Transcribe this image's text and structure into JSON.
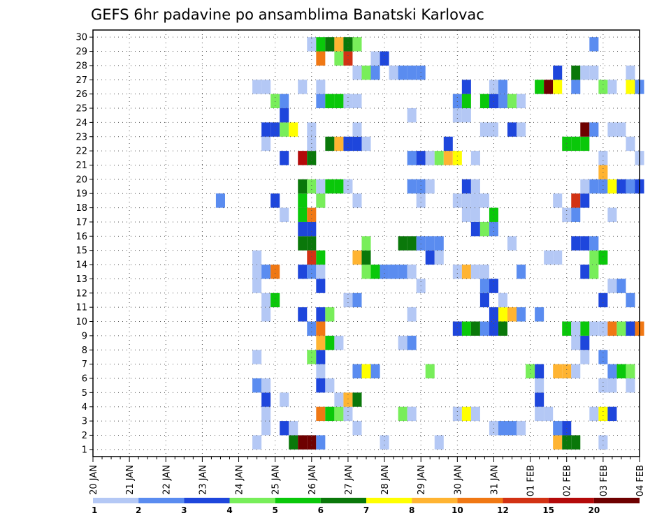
{
  "chart_data": {
    "type": "heatmap",
    "title": "GEFS 6hr padavine po ansamblima Banatski Karlovac",
    "xlabel": "",
    "ylabel": "",
    "x_ticks": [
      "20 JAN",
      "21 JAN",
      "22 JAN",
      "23 JAN",
      "24 JAN",
      "25 JAN",
      "26 JAN",
      "27 JAN",
      "28 JAN",
      "29 JAN",
      "30 JAN",
      "31 JAN",
      "01 FEB",
      "02 FEB",
      "03 FEB",
      "04 FEB"
    ],
    "y_ticks": [
      "1",
      "2",
      "3",
      "4",
      "5",
      "6",
      "7",
      "8",
      "9",
      "10",
      "11",
      "12",
      "13",
      "14",
      "15",
      "16",
      "17",
      "18",
      "19",
      "20",
      "21",
      "22",
      "23",
      "24",
      "25",
      "26",
      "27",
      "28",
      "29",
      "30"
    ],
    "xlim": [
      0,
      15
    ],
    "ylim": [
      0,
      30
    ],
    "grid": true,
    "time_step_per_day": 4,
    "legend_labels": [
      "1",
      "2",
      "3",
      "4",
      "5",
      "6",
      "7",
      "8",
      "10",
      "12",
      "15",
      "20"
    ],
    "levels": [
      1,
      2,
      3,
      4,
      5,
      6,
      7,
      8,
      10,
      12,
      15,
      20
    ],
    "colors": [
      "#b4c8f5",
      "#5a8cf0",
      "#1e46dc",
      "#78ee5a",
      "#0ac80a",
      "#0a780a",
      "#ffff00",
      "#ffb432",
      "#f07814",
      "#d23214",
      "#b40a0a",
      "#6e0000"
    ],
    "cells": [
      [
        25.5,
        1,
        6
      ],
      [
        25.75,
        1,
        12
      ],
      [
        26.0,
        1,
        12
      ],
      [
        26.25,
        1,
        2
      ],
      [
        24.5,
        1,
        1
      ],
      [
        28.0,
        1,
        1
      ],
      [
        29.5,
        1,
        1
      ],
      [
        32.75,
        1,
        8
      ],
      [
        33.0,
        1,
        6
      ],
      [
        33.25,
        1,
        6
      ],
      [
        34.0,
        1,
        1
      ],
      [
        24.75,
        2,
        1
      ],
      [
        25.25,
        2,
        3
      ],
      [
        25.5,
        2,
        1
      ],
      [
        27.25,
        2,
        1
      ],
      [
        31.0,
        2,
        1
      ],
      [
        31.25,
        2,
        2
      ],
      [
        31.5,
        2,
        2
      ],
      [
        31.75,
        2,
        1
      ],
      [
        32.75,
        2,
        2
      ],
      [
        33.0,
        2,
        3
      ],
      [
        24.75,
        3,
        1
      ],
      [
        26.25,
        3,
        9
      ],
      [
        26.5,
        3,
        5
      ],
      [
        26.75,
        3,
        4
      ],
      [
        27.0,
        3,
        1
      ],
      [
        28.5,
        3,
        4
      ],
      [
        28.75,
        3,
        1
      ],
      [
        30.0,
        3,
        1
      ],
      [
        30.25,
        3,
        7
      ],
      [
        30.5,
        3,
        1
      ],
      [
        32.25,
        3,
        1
      ],
      [
        32.5,
        3,
        1
      ],
      [
        33.75,
        3,
        1
      ],
      [
        34.0,
        3,
        7
      ],
      [
        34.25,
        3,
        3
      ],
      [
        24.75,
        4,
        3
      ],
      [
        25.25,
        4,
        1
      ],
      [
        26.75,
        4,
        1
      ],
      [
        27.0,
        4,
        8
      ],
      [
        27.25,
        4,
        6
      ],
      [
        32.25,
        4,
        3
      ],
      [
        24.5,
        5,
        2
      ],
      [
        24.75,
        5,
        1
      ],
      [
        26.25,
        5,
        3
      ],
      [
        26.5,
        5,
        1
      ],
      [
        32.25,
        5,
        1
      ],
      [
        34.0,
        5,
        1
      ],
      [
        34.25,
        5,
        1
      ],
      [
        34.75,
        5,
        1
      ],
      [
        26.25,
        6,
        1
      ],
      [
        27.25,
        6,
        2
      ],
      [
        27.5,
        6,
        7
      ],
      [
        27.75,
        6,
        2
      ],
      [
        29.25,
        6,
        4
      ],
      [
        32.0,
        6,
        4
      ],
      [
        32.25,
        6,
        3
      ],
      [
        32.75,
        6,
        8
      ],
      [
        33.0,
        6,
        8
      ],
      [
        33.25,
        6,
        1
      ],
      [
        34.25,
        6,
        2
      ],
      [
        34.5,
        6,
        5
      ],
      [
        34.75,
        6,
        4
      ],
      [
        24.5,
        7,
        1
      ],
      [
        26.0,
        7,
        4
      ],
      [
        26.25,
        7,
        3
      ],
      [
        33.5,
        7,
        1
      ],
      [
        34.0,
        7,
        2
      ],
      [
        26.25,
        8,
        8
      ],
      [
        26.5,
        8,
        5
      ],
      [
        26.75,
        8,
        1
      ],
      [
        28.5,
        8,
        1
      ],
      [
        28.75,
        8,
        2
      ],
      [
        33.25,
        8,
        1
      ],
      [
        33.5,
        8,
        3
      ],
      [
        26.0,
        9,
        2
      ],
      [
        26.25,
        9,
        9
      ],
      [
        30.0,
        9,
        3
      ],
      [
        30.25,
        9,
        5
      ],
      [
        30.5,
        9,
        6
      ],
      [
        30.75,
        9,
        2
      ],
      [
        31.0,
        9,
        3
      ],
      [
        31.25,
        9,
        6
      ],
      [
        33.0,
        9,
        5
      ],
      [
        33.25,
        9,
        1
      ],
      [
        33.5,
        9,
        5
      ],
      [
        33.75,
        9,
        1
      ],
      [
        33.25,
        9,
        1
      ],
      [
        34.0,
        9,
        1
      ],
      [
        34.25,
        9,
        9
      ],
      [
        34.5,
        9,
        4
      ],
      [
        34.75,
        9,
        3
      ],
      [
        35.0,
        9,
        9
      ],
      [
        24.75,
        10,
        1
      ],
      [
        25.75,
        10,
        3
      ],
      [
        26.25,
        10,
        3
      ],
      [
        26.5,
        10,
        4
      ],
      [
        28.75,
        10,
        1
      ],
      [
        31.0,
        10,
        3
      ],
      [
        31.25,
        10,
        7
      ],
      [
        31.5,
        10,
        8
      ],
      [
        31.75,
        10,
        2
      ],
      [
        32.25,
        10,
        2
      ],
      [
        24.75,
        11,
        1
      ],
      [
        25.0,
        11,
        5
      ],
      [
        27.0,
        11,
        1
      ],
      [
        27.25,
        11,
        2
      ],
      [
        30.75,
        11,
        3
      ],
      [
        31.25,
        11,
        1
      ],
      [
        34.0,
        11,
        3
      ],
      [
        34.75,
        11,
        2
      ],
      [
        24.5,
        12,
        1
      ],
      [
        26.25,
        12,
        3
      ],
      [
        29.0,
        12,
        1
      ],
      [
        30.75,
        12,
        2
      ],
      [
        31.0,
        12,
        3
      ],
      [
        34.25,
        12,
        1
      ],
      [
        34.5,
        12,
        2
      ],
      [
        24.5,
        13,
        1
      ],
      [
        24.75,
        13,
        2
      ],
      [
        25.0,
        13,
        9
      ],
      [
        25.75,
        13,
        3
      ],
      [
        26.0,
        13,
        2
      ],
      [
        26.25,
        13,
        1
      ],
      [
        27.5,
        13,
        4
      ],
      [
        27.75,
        13,
        5
      ],
      [
        28.0,
        13,
        2
      ],
      [
        28.25,
        13,
        2
      ],
      [
        28.5,
        13,
        2
      ],
      [
        28.75,
        13,
        1
      ],
      [
        30.0,
        13,
        1
      ],
      [
        30.25,
        13,
        8
      ],
      [
        30.5,
        13,
        1
      ],
      [
        30.75,
        13,
        1
      ],
      [
        31.75,
        13,
        2
      ],
      [
        33.5,
        13,
        3
      ],
      [
        33.75,
        13,
        4
      ],
      [
        24.5,
        14,
        1
      ],
      [
        26.0,
        14,
        10
      ],
      [
        26.25,
        14,
        5
      ],
      [
        27.25,
        14,
        8
      ],
      [
        27.5,
        14,
        6
      ],
      [
        29.25,
        14,
        3
      ],
      [
        29.5,
        14,
        1
      ],
      [
        32.5,
        14,
        1
      ],
      [
        32.75,
        14,
        1
      ],
      [
        33.75,
        14,
        4
      ],
      [
        34.0,
        14,
        5
      ],
      [
        25.75,
        15,
        6
      ],
      [
        26.0,
        15,
        6
      ],
      [
        27.5,
        15,
        4
      ],
      [
        28.5,
        15,
        6
      ],
      [
        28.75,
        15,
        6
      ],
      [
        29.0,
        15,
        2
      ],
      [
        29.25,
        15,
        2
      ],
      [
        29.5,
        15,
        2
      ],
      [
        31.5,
        15,
        1
      ],
      [
        33.25,
        15,
        3
      ],
      [
        33.5,
        15,
        3
      ],
      [
        33.75,
        15,
        2
      ],
      [
        25.75,
        16,
        3
      ],
      [
        26.0,
        16,
        3
      ],
      [
        30.5,
        16,
        3
      ],
      [
        30.75,
        16,
        1
      ],
      [
        30.75,
        16,
        4
      ],
      [
        31.0,
        16,
        2
      ],
      [
        25.25,
        17,
        1
      ],
      [
        25.75,
        17,
        5
      ],
      [
        26.0,
        17,
        9
      ],
      [
        30.25,
        17,
        1
      ],
      [
        30.5,
        17,
        1
      ],
      [
        31.0,
        17,
        5
      ],
      [
        33.0,
        17,
        1
      ],
      [
        33.25,
        17,
        2
      ],
      [
        34.25,
        17,
        1
      ],
      [
        23.5,
        18,
        1
      ],
      [
        23.5,
        18,
        2
      ],
      [
        25.0,
        18,
        3
      ],
      [
        25.75,
        18,
        5
      ],
      [
        26.25,
        18,
        1
      ],
      [
        26.25,
        18,
        4
      ],
      [
        27.25,
        18,
        1
      ],
      [
        29.0,
        18,
        1
      ],
      [
        30.0,
        18,
        1
      ],
      [
        30.25,
        18,
        1
      ],
      [
        30.5,
        18,
        1
      ],
      [
        30.75,
        18,
        1
      ],
      [
        32.75,
        18,
        1
      ],
      [
        33.25,
        18,
        10
      ],
      [
        33.5,
        18,
        3
      ],
      [
        25.75,
        19,
        6
      ],
      [
        26.0,
        19,
        4
      ],
      [
        26.25,
        19,
        1
      ],
      [
        26.5,
        19,
        5
      ],
      [
        26.75,
        19,
        5
      ],
      [
        27.0,
        19,
        1
      ],
      [
        28.75,
        19,
        2
      ],
      [
        29.0,
        19,
        2
      ],
      [
        29.25,
        19,
        1
      ],
      [
        30.25,
        19,
        3
      ],
      [
        30.5,
        19,
        1
      ],
      [
        33.5,
        19,
        1
      ],
      [
        33.75,
        19,
        2
      ],
      [
        34.0,
        19,
        2
      ],
      [
        34.25,
        19,
        7
      ],
      [
        34.5,
        19,
        3
      ],
      [
        34.75,
        19,
        2
      ],
      [
        35.0,
        19,
        3
      ],
      [
        34.0,
        20,
        8
      ],
      [
        25.25,
        21,
        3
      ],
      [
        25.75,
        21,
        11
      ],
      [
        26.0,
        21,
        6
      ],
      [
        28.75,
        21,
        2
      ],
      [
        29.0,
        21,
        3
      ],
      [
        29.25,
        21,
        1
      ],
      [
        29.5,
        21,
        4
      ],
      [
        29.75,
        21,
        8
      ],
      [
        30.0,
        21,
        7
      ],
      [
        30.5,
        21,
        1
      ],
      [
        34.0,
        21,
        1
      ],
      [
        35.0,
        21,
        1
      ],
      [
        24.75,
        22,
        1
      ],
      [
        26.0,
        22,
        1
      ],
      [
        26.5,
        22,
        6
      ],
      [
        26.75,
        22,
        8
      ],
      [
        27.0,
        22,
        3
      ],
      [
        27.25,
        22,
        3
      ],
      [
        27.5,
        22,
        1
      ],
      [
        29.75,
        22,
        3
      ],
      [
        33.0,
        22,
        5
      ],
      [
        33.25,
        22,
        5
      ],
      [
        33.5,
        22,
        5
      ],
      [
        34.75,
        22,
        1
      ],
      [
        24.75,
        23,
        3
      ],
      [
        25.0,
        23,
        3
      ],
      [
        25.25,
        23,
        4
      ],
      [
        25.5,
        23,
        7
      ],
      [
        26.0,
        23,
        1
      ],
      [
        27.25,
        23,
        1
      ],
      [
        30.75,
        23,
        1
      ],
      [
        31.0,
        23,
        1
      ],
      [
        31.5,
        23,
        3
      ],
      [
        31.75,
        23,
        1
      ],
      [
        33.5,
        23,
        12
      ],
      [
        33.75,
        23,
        2
      ],
      [
        34.25,
        23,
        1
      ],
      [
        34.5,
        23,
        1
      ],
      [
        25.25,
        24,
        3
      ],
      [
        28.75,
        24,
        1
      ],
      [
        30.0,
        24,
        1
      ],
      [
        30.25,
        24,
        1
      ],
      [
        25.0,
        25,
        4
      ],
      [
        25.25,
        25,
        2
      ],
      [
        26.25,
        25,
        2
      ],
      [
        26.5,
        25,
        5
      ],
      [
        26.75,
        25,
        5
      ],
      [
        27.0,
        25,
        1
      ],
      [
        27.25,
        25,
        1
      ],
      [
        30.0,
        25,
        2
      ],
      [
        30.25,
        25,
        5
      ],
      [
        30.75,
        25,
        5
      ],
      [
        31.0,
        25,
        3
      ],
      [
        31.25,
        25,
        2
      ],
      [
        31.5,
        25,
        4
      ],
      [
        31.75,
        25,
        1
      ],
      [
        24.5,
        26,
        1
      ],
      [
        24.75,
        26,
        1
      ],
      [
        25.75,
        26,
        1
      ],
      [
        26.25,
        26,
        1
      ],
      [
        30.25,
        26,
        3
      ],
      [
        31.0,
        26,
        1
      ],
      [
        31.25,
        26,
        2
      ],
      [
        32.25,
        26,
        5
      ],
      [
        32.5,
        26,
        12
      ],
      [
        32.75,
        26,
        7
      ],
      [
        33.25,
        26,
        2
      ],
      [
        34.0,
        26,
        4
      ],
      [
        34.25,
        26,
        1
      ],
      [
        34.75,
        26,
        7
      ],
      [
        35.0,
        26,
        2
      ],
      [
        27.25,
        27,
        1
      ],
      [
        27.5,
        27,
        4
      ],
      [
        27.75,
        27,
        2
      ],
      [
        28.25,
        27,
        1
      ],
      [
        28.5,
        27,
        2
      ],
      [
        28.75,
        27,
        2
      ],
      [
        29.0,
        27,
        2
      ],
      [
        32.75,
        27,
        3
      ],
      [
        33.25,
        27,
        6
      ],
      [
        33.5,
        27,
        1
      ],
      [
        33.75,
        27,
        1
      ],
      [
        34.75,
        27,
        1
      ],
      [
        26.25,
        28,
        9
      ],
      [
        26.75,
        28,
        4
      ],
      [
        27.0,
        28,
        10
      ],
      [
        27.75,
        28,
        1
      ],
      [
        28.0,
        28,
        3
      ],
      [
        26.0,
        29,
        1
      ],
      [
        26.25,
        29,
        5
      ],
      [
        26.5,
        29,
        6
      ],
      [
        26.75,
        29,
        8
      ],
      [
        27.0,
        29,
        6
      ],
      [
        27.25,
        29,
        4
      ],
      [
        33.75,
        29,
        2
      ]
    ]
  }
}
